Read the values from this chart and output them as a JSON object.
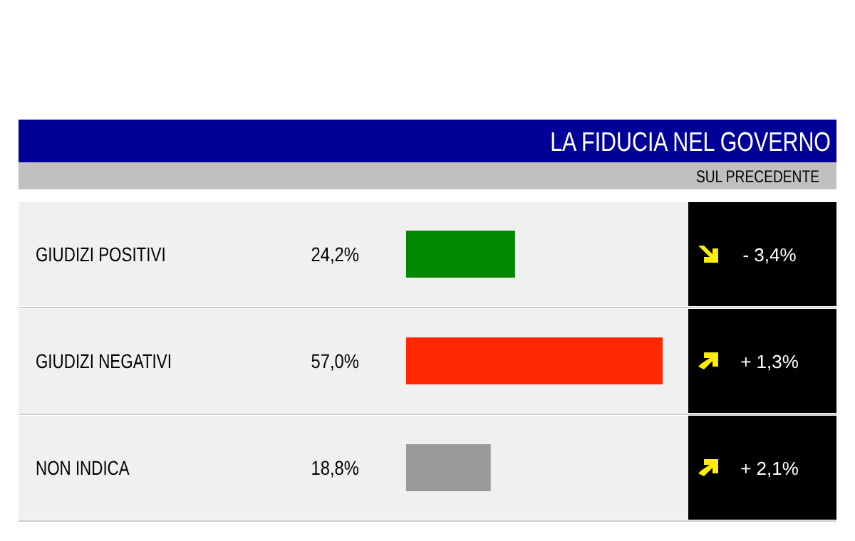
{
  "chart_data": {
    "type": "bar",
    "orientation": "horizontal",
    "title": "LA FIDUCIA NEL GOVERNO",
    "subtitle": "SUL PRECEDENTE",
    "categories": [
      "GIUDIZI POSITIVI",
      "GIUDIZI NEGATIVI",
      "NON INDICA"
    ],
    "values": [
      24.2,
      57.0,
      18.8
    ],
    "colors": [
      "#008800",
      "#ff2800",
      "#999999"
    ],
    "value_labels": [
      "24,2%",
      "57,0%",
      "18,8%"
    ],
    "annotations": [
      "- 3,4%",
      "+ 1,3%",
      "+ 2,1%"
    ]
  }
}
